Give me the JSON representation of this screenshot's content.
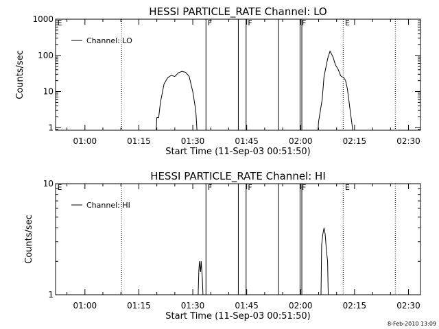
{
  "footer": {
    "timestamp": "8-Feb-2010 13:09"
  },
  "chart_data": [
    {
      "type": "line",
      "title": "HESSI PARTICLE_RATE Channel: LO",
      "xlabel": "Start Time (11-Sep-03 00:51:50)",
      "ylabel": "Counts/sec",
      "yscale": "log",
      "ylim": [
        0.85,
        1000
      ],
      "xlim": [
        "00:51:50",
        "02:33:20"
      ],
      "x_ticks": [
        "01:00",
        "01:15",
        "01:30",
        "01:45",
        "02:00",
        "02:15",
        "02:30"
      ],
      "y_ticks": [
        {
          "value": 1,
          "label": "1"
        },
        {
          "value": 10,
          "label": "10"
        },
        {
          "value": 100,
          "label": "100"
        },
        {
          "value": 1000,
          "label": "1000"
        }
      ],
      "legend": {
        "position": "top-left",
        "entries": [
          "Channel: LO"
        ]
      },
      "series": [
        {
          "name": "Channel: LO",
          "segments": [
            [
              [
                "01:19:50",
                0.85
              ],
              [
                "01:20:00",
                1.9
              ],
              [
                "01:20:30",
                1.9
              ],
              [
                "01:21:00",
                5.0
              ],
              [
                "01:22:00",
                16
              ],
              [
                "01:23:00",
                24
              ],
              [
                "01:24:00",
                28
              ],
              [
                "01:25:00",
                26
              ],
              [
                "01:26:00",
                33
              ],
              [
                "01:27:00",
                36
              ],
              [
                "01:28:00",
                34
              ],
              [
                "01:29:00",
                26
              ],
              [
                "01:30:00",
                10
              ],
              [
                "01:30:50",
                3.0
              ],
              [
                "01:31:10",
                0.85
              ]
            ],
            [
              [
                "02:04:50",
                0.85
              ],
              [
                "02:05:00",
                1.5
              ],
              [
                "02:06:00",
                6.0
              ],
              [
                "02:06:30",
                26
              ],
              [
                "02:07:30",
                80
              ],
              [
                "02:08:10",
                130
              ],
              [
                "02:09:00",
                90
              ],
              [
                "02:09:40",
                55
              ],
              [
                "02:10:30",
                40
              ],
              [
                "02:11:10",
                27
              ],
              [
                "02:12:00",
                24
              ],
              [
                "02:12:30",
                20
              ],
              [
                "02:13:00",
                12
              ],
              [
                "02:13:30",
                5.0
              ],
              [
                "02:14:00",
                2.0
              ],
              [
                "02:14:30",
                0.85
              ]
            ]
          ]
        }
      ],
      "vertical_lines": [
        {
          "time": "01:33:40",
          "style": "solid"
        },
        {
          "time": "01:42:40",
          "style": "solid"
        },
        {
          "time": "01:44:50",
          "style": "solid"
        },
        {
          "time": "01:53:50",
          "style": "solid"
        },
        {
          "time": "01:59:50",
          "style": "solid"
        },
        {
          "time": "02:00:20",
          "style": "solid"
        },
        {
          "time": "01:10:10",
          "style": "dotted"
        },
        {
          "time": "02:11:50",
          "style": "dotted"
        },
        {
          "time": "02:26:20",
          "style": "dotted"
        }
      ],
      "flags": [
        {
          "time": "00:52:20",
          "label": "E"
        },
        {
          "time": "01:34:10",
          "label": "F"
        },
        {
          "time": "01:45:20",
          "label": "F"
        },
        {
          "time": "02:00:20",
          "label": "F"
        },
        {
          "time": "02:12:20",
          "label": "E"
        }
      ]
    },
    {
      "type": "line",
      "title": "HESSI PARTICLE_RATE Channel: HI",
      "xlabel": "Start Time (11-Sep-03 00:51:50)",
      "ylabel": "Counts/sec",
      "yscale": "log",
      "ylim": [
        1,
        10
      ],
      "xlim": [
        "00:51:50",
        "02:33:20"
      ],
      "x_ticks": [
        "01:00",
        "01:15",
        "01:30",
        "01:45",
        "02:00",
        "02:15",
        "02:30"
      ],
      "y_ticks": [
        {
          "value": 1,
          "label": "1"
        },
        {
          "value": 10,
          "label": "10"
        }
      ],
      "legend": {
        "position": "top-left",
        "entries": [
          "Channel: HI"
        ]
      },
      "series": [
        {
          "name": "Channel: HI",
          "segments": [
            [
              [
                "01:31:30",
                1.0
              ],
              [
                "01:31:40",
                1.6
              ],
              [
                "01:31:50",
                2.0
              ],
              [
                "01:32:10",
                1.6
              ],
              [
                "01:32:20",
                2.0
              ],
              [
                "01:32:40",
                1.4
              ],
              [
                "01:32:50",
                1.0
              ]
            ],
            [
              [
                "02:05:40",
                1.0
              ],
              [
                "02:05:50",
                2.8
              ],
              [
                "02:06:10",
                3.5
              ],
              [
                "02:06:30",
                4.0
              ],
              [
                "02:06:50",
                3.5
              ],
              [
                "02:07:10",
                2.5
              ],
              [
                "02:07:30",
                2.0
              ],
              [
                "02:07:40",
                1.0
              ]
            ]
          ]
        }
      ],
      "vertical_lines": [
        {
          "time": "01:33:40",
          "style": "solid"
        },
        {
          "time": "01:42:40",
          "style": "solid"
        },
        {
          "time": "01:44:50",
          "style": "solid"
        },
        {
          "time": "01:53:50",
          "style": "solid"
        },
        {
          "time": "01:59:50",
          "style": "solid"
        },
        {
          "time": "02:00:20",
          "style": "solid"
        },
        {
          "time": "01:10:10",
          "style": "dotted"
        },
        {
          "time": "02:11:50",
          "style": "dotted"
        },
        {
          "time": "02:26:20",
          "style": "dotted"
        }
      ],
      "flags": [
        {
          "time": "00:52:20",
          "label": "E"
        },
        {
          "time": "01:34:10",
          "label": "F"
        },
        {
          "time": "01:45:20",
          "label": "F"
        },
        {
          "time": "02:00:20",
          "label": "F"
        },
        {
          "time": "02:12:20",
          "label": "E"
        }
      ]
    }
  ]
}
